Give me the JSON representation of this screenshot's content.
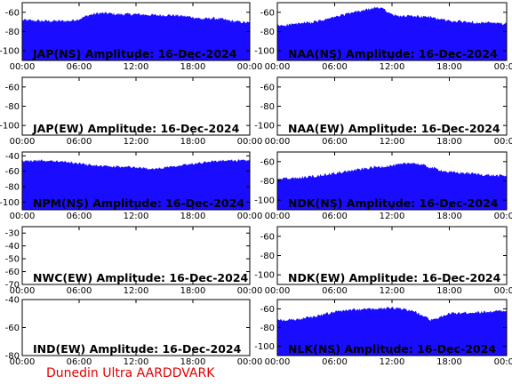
{
  "footer": {
    "text": "Dunedin Ultra AARDDVARK",
    "color": "#e00000"
  },
  "colors": {
    "fill": "#1a0dff",
    "axis": "#000000"
  },
  "chart_data": [
    {
      "type": "area",
      "title": "JAP(NS) Amplitude: 16-Dec-2024",
      "ylim": [
        -110,
        -50
      ],
      "yticks": [
        -100,
        -80,
        -60
      ],
      "xticks": [
        "00:00",
        "06:00",
        "12:00",
        "18:00",
        "00:00"
      ],
      "x_hours": [
        0,
        2,
        4,
        5,
        6,
        7,
        8,
        9,
        10,
        12,
        14,
        16,
        18,
        19,
        20,
        21,
        22,
        23,
        24
      ],
      "y_top": [
        -68,
        -69,
        -69,
        -69,
        -67,
        -63,
        -61,
        -61,
        -62,
        -62,
        -63,
        -63,
        -65,
        -67,
        -66,
        -67,
        -69,
        -70,
        -71
      ]
    },
    {
      "type": "area",
      "title": "NAA(NS) Amplitude: 16-Dec-2024",
      "ylim": [
        -110,
        -50
      ],
      "yticks": [
        -100,
        -80,
        -60
      ],
      "xticks": [
        "00:00",
        "06:00",
        "12:00",
        "18:00",
        "00:00"
      ],
      "x_hours": [
        0,
        2,
        4,
        6,
        8,
        10,
        11,
        12,
        13,
        14,
        16,
        18,
        20,
        22,
        24
      ],
      "y_top": [
        -74,
        -72,
        -70,
        -65,
        -60,
        -56,
        -55,
        -63,
        -64,
        -64,
        -65,
        -69,
        -70,
        -71,
        -72
      ]
    },
    {
      "type": "area",
      "title": "JAP(EW) Amplitude: 16-Dec-2024",
      "ylim": [
        -110,
        -50
      ],
      "yticks": [
        -100,
        -80,
        -60
      ],
      "xticks": [
        "00:00",
        "06:00",
        "12:00",
        "18:00",
        "00:00"
      ],
      "x_hours": [],
      "y_top": []
    },
    {
      "type": "area",
      "title": "NAA(EW) Amplitude: 16-Dec-2024",
      "ylim": [
        -110,
        -50
      ],
      "yticks": [
        -100,
        -80,
        -60
      ],
      "xticks": [
        "00:00",
        "06:00",
        "12:00",
        "18:00",
        "00:00"
      ],
      "x_hours": [],
      "y_top": []
    },
    {
      "type": "area",
      "title": "NPM(NS) Amplitude: 16-Dec-2024",
      "ylim": [
        -110,
        -35
      ],
      "yticks": [
        -100,
        -80,
        -60,
        -40
      ],
      "xticks": [
        "00:00",
        "06:00",
        "12:00",
        "18:00",
        "00:00"
      ],
      "x_hours": [
        0,
        2,
        4,
        6,
        8,
        10,
        12,
        14,
        15,
        16,
        18,
        20,
        22,
        24
      ],
      "y_top": [
        -47,
        -46,
        -47,
        -50,
        -53,
        -54,
        -55,
        -57,
        -55,
        -53,
        -50,
        -47,
        -46,
        -46
      ]
    },
    {
      "type": "area",
      "title": "NDK(NS) Amplitude: 16-Dec-2024",
      "ylim": [
        -110,
        -50
      ],
      "yticks": [
        -100,
        -80,
        -60
      ],
      "xticks": [
        "00:00",
        "06:00",
        "12:00",
        "18:00",
        "00:00"
      ],
      "x_hours": [
        0,
        2,
        4,
        6,
        8,
        10,
        12,
        13,
        14,
        15,
        16,
        18,
        20,
        22,
        24
      ],
      "y_top": [
        -78,
        -77,
        -75,
        -72,
        -69,
        -66,
        -64,
        -63,
        -61,
        -63,
        -66,
        -71,
        -72,
        -74,
        -75
      ]
    },
    {
      "type": "area",
      "title": "NWC(EW) Amplitude: 16-Dec-2024",
      "ylim": [
        -70,
        -25
      ],
      "yticks": [
        -70,
        -60,
        -50,
        -40,
        -30
      ],
      "xticks": [
        "00:00",
        "06:00",
        "12:00",
        "18:00",
        "00:00"
      ],
      "x_hours": [],
      "y_top": []
    },
    {
      "type": "area",
      "title": "NDK(EW) Amplitude: 16-Dec-2024",
      "ylim": [
        -110,
        -50
      ],
      "yticks": [
        -100,
        -80,
        -60
      ],
      "xticks": [
        "00:00",
        "06:00",
        "12:00",
        "18:00",
        "00:00"
      ],
      "x_hours": [],
      "y_top": []
    },
    {
      "type": "area",
      "title": "IND(EW) Amplitude: 16-Dec-2024",
      "ylim": [
        -80,
        -40
      ],
      "yticks": [
        -80,
        -60,
        -40
      ],
      "xticks": [
        "00:00",
        "06:00",
        "12:00",
        "18:00",
        "00:00"
      ],
      "x_hours": [],
      "y_top": []
    },
    {
      "type": "area",
      "title": "NLK(NS) Amplitude: 16-Dec-2024",
      "ylim": [
        -110,
        -50
      ],
      "yticks": [
        -100,
        -80,
        -60
      ],
      "xticks": [
        "00:00",
        "06:00",
        "12:00",
        "18:00",
        "00:00"
      ],
      "x_hours": [
        0,
        2,
        4,
        6,
        8,
        10,
        12,
        13,
        14,
        15,
        16,
        17,
        18,
        20,
        22,
        24
      ],
      "y_top": [
        -72,
        -71,
        -68,
        -63,
        -61,
        -60,
        -59,
        -60,
        -62,
        -66,
        -72,
        -69,
        -65,
        -64,
        -63,
        -62
      ]
    }
  ]
}
